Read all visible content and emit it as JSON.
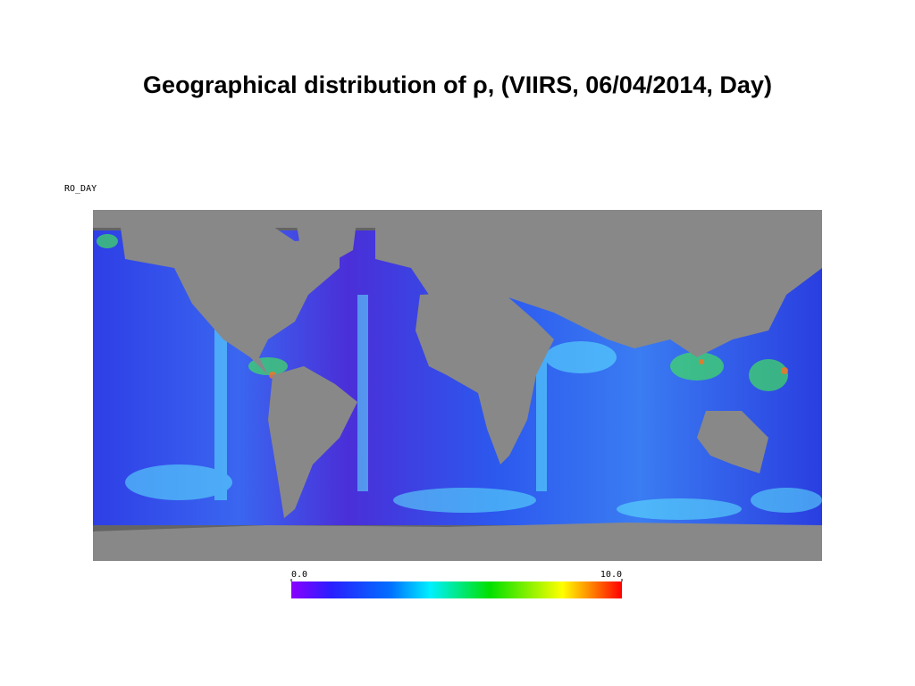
{
  "title": "Geographical distribution of ρ, (VIIRS, 06/04/2014, Day)",
  "map": {
    "label": "RO_DAY",
    "colorbar": {
      "lim": [
        0,
        10
      ],
      "ticks": [
        {
          "value": 0,
          "label": "0.0"
        },
        {
          "value": 10,
          "label": "10.0"
        }
      ]
    }
  }
}
